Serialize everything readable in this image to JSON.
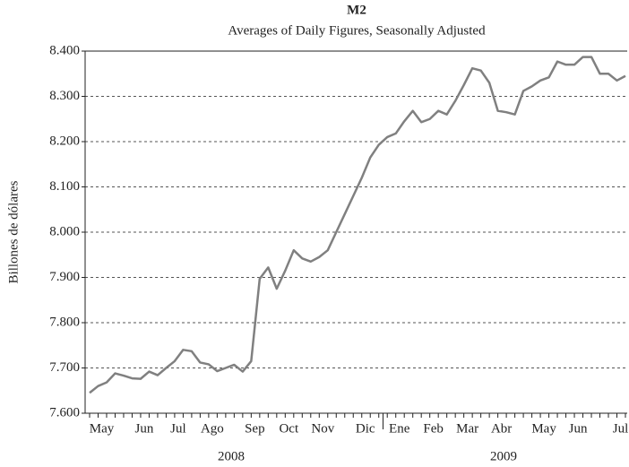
{
  "chart_data": {
    "type": "line",
    "title": "M2",
    "subtitle": "Averages of Daily Figures, Seasonally Adjusted",
    "y_axis_label": "Billones de dólares",
    "year_labels": [
      "2008",
      "2009"
    ],
    "categories": [
      null,
      "May",
      null,
      null,
      null,
      null,
      "Jun",
      null,
      null,
      null,
      "Jul",
      null,
      null,
      null,
      "Ago",
      null,
      null,
      null,
      null,
      "Sep",
      null,
      null,
      null,
      "Oct",
      null,
      null,
      null,
      "Nov",
      null,
      null,
      null,
      null,
      "Dic",
      null,
      null,
      null,
      "Ene",
      null,
      null,
      null,
      "Feb",
      null,
      null,
      null,
      "Mar",
      null,
      null,
      null,
      "Abr",
      null,
      null,
      null,
      null,
      "May",
      null,
      null,
      null,
      "Jun",
      null,
      null,
      null,
      null,
      "Jul",
      null
    ],
    "series": [
      {
        "name": "M2",
        "color": "#808080",
        "values": [
          7645,
          7660,
          7668,
          7688,
          7683,
          7677,
          7676,
          7692,
          7684,
          7700,
          7715,
          7740,
          7737,
          7712,
          7708,
          7693,
          7700,
          7707,
          7692,
          7715,
          7897,
          7922,
          7875,
          7915,
          7960,
          7942,
          7935,
          7945,
          7960,
          8000,
          8040,
          8080,
          8120,
          8165,
          8193,
          8210,
          8218,
          8245,
          8268,
          8243,
          8250,
          8268,
          8260,
          8290,
          8325,
          8362,
          8357,
          8330,
          8268,
          8265,
          8260,
          8312,
          8322,
          8335,
          8342,
          8377,
          8370,
          8370,
          8387,
          8387,
          8350,
          8350,
          8335,
          8345
        ]
      }
    ],
    "ylim": [
      7600,
      8400
    ],
    "yticks": [
      {
        "value": 7600,
        "label": "7.600"
      },
      {
        "value": 7700,
        "label": "7.700"
      },
      {
        "value": 7800,
        "label": "7.800"
      },
      {
        "value": 7900,
        "label": "7.900"
      },
      {
        "value": 8000,
        "label": "8.000"
      },
      {
        "value": 8100,
        "label": "8.100"
      },
      {
        "value": 8200,
        "label": "8.200"
      },
      {
        "value": 8300,
        "label": "8.300"
      },
      {
        "value": 8400,
        "label": "8.400"
      }
    ],
    "grid": true
  }
}
